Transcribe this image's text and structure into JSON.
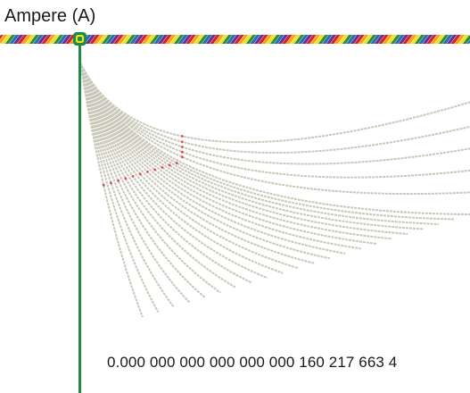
{
  "title": "Ampere (A)",
  "value_text": "0.000 000 000 000 000 000 160 217 663 4",
  "colors": {
    "rope_stripes": [
      "#2e8b3a",
      "#1f6fb5",
      "#6a2d8f",
      "#d81e2a",
      "#f3a21b",
      "#f0e21e"
    ],
    "pole": "#1f8a4a",
    "knot": "#1f8a4a",
    "strands": "#c8c7b8",
    "strand_marks": "#e2484a",
    "text": "#1a1a1a"
  }
}
